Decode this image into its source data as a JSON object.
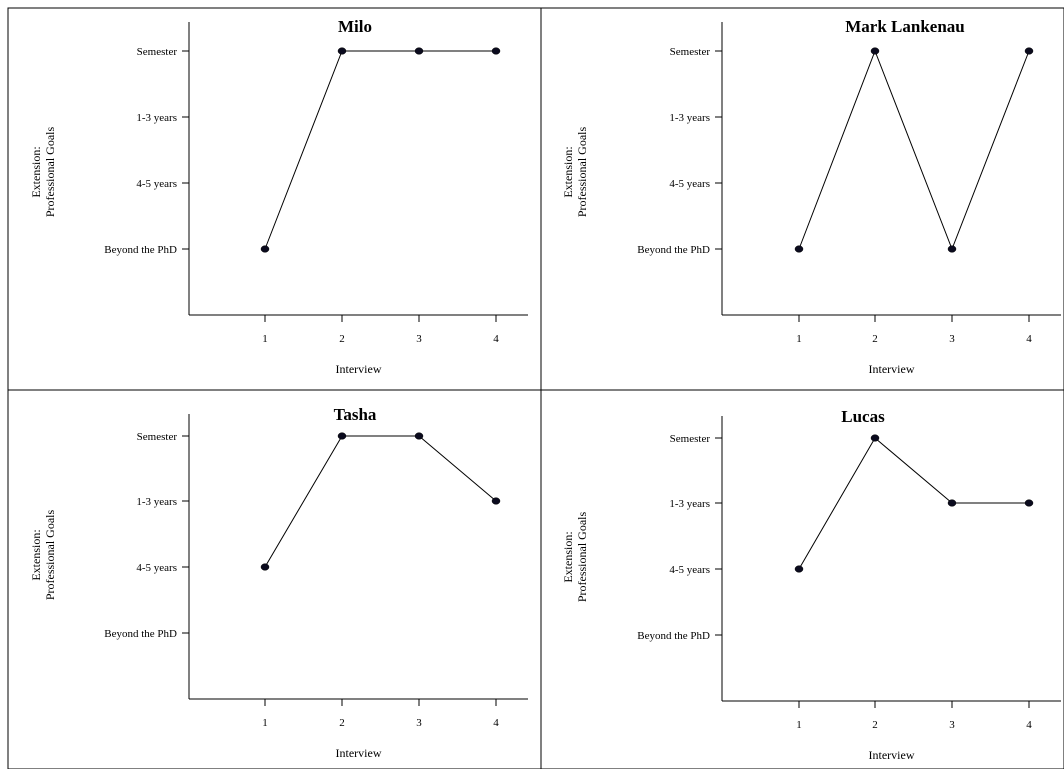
{
  "chart_data": [
    {
      "type": "line",
      "title": "Milo",
      "xlabel": "Interview",
      "ylabel": [
        "Extension:",
        "Professional Goals"
      ],
      "x": [
        "1",
        "2",
        "3",
        "4"
      ],
      "y_categories": [
        "Semester",
        "1-3 years",
        "4-5 years",
        "Beyond the PhD"
      ],
      "values": [
        "Beyond the PhD",
        "Semester",
        "Semester",
        "Semester"
      ]
    },
    {
      "type": "line",
      "title": "Mark Lankenau",
      "xlabel": "Interview",
      "ylabel": [
        "Extension:",
        "Professional Goals"
      ],
      "x": [
        "1",
        "2",
        "3",
        "4"
      ],
      "y_categories": [
        "Semester",
        "1-3 years",
        "4-5 years",
        "Beyond the PhD"
      ],
      "values": [
        "Beyond the PhD",
        "Semester",
        "Beyond the PhD",
        "Semester"
      ]
    },
    {
      "type": "line",
      "title": "Tasha",
      "xlabel": "Interview",
      "ylabel": [
        "Extension:",
        "Professional Goals"
      ],
      "x": [
        "1",
        "2",
        "3",
        "4"
      ],
      "y_categories": [
        "Semester",
        "1-3 years",
        "4-5 years",
        "Beyond the PhD"
      ],
      "values": [
        "4-5 years",
        "Semester",
        "Semester",
        "1-3 years"
      ]
    },
    {
      "type": "line",
      "title": "Lucas",
      "xlabel": "Interview",
      "ylabel": [
        "Extension:",
        "Professional Goals"
      ],
      "x": [
        "1",
        "2",
        "3",
        "4"
      ],
      "y_categories": [
        "Semester",
        "1-3 years",
        "4-5 years",
        "Beyond the PhD"
      ],
      "values": [
        "4-5 years",
        "Semester",
        "1-3 years",
        "1-3 years"
      ]
    }
  ]
}
